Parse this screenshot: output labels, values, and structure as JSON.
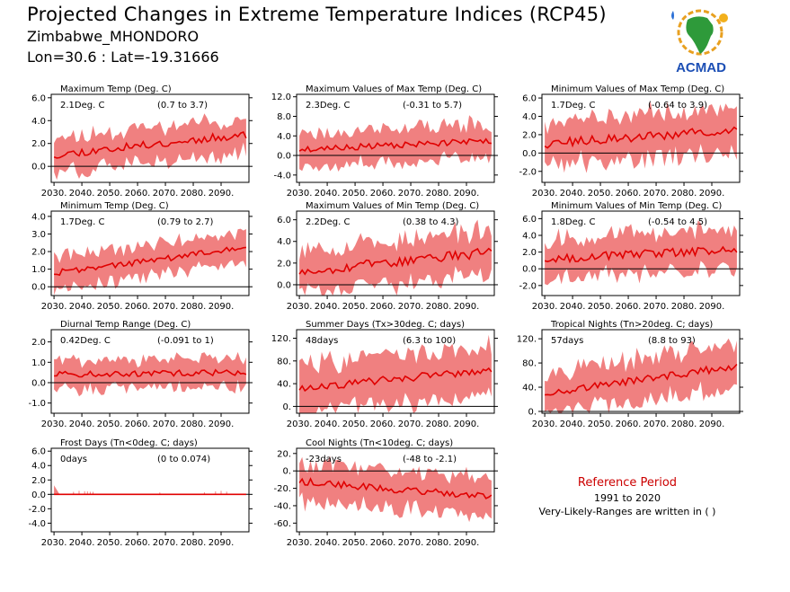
{
  "header": {
    "title": "Projected Changes in Extreme Temperature Indices (RCP45)",
    "location": "Zimbabwe_MHONDORO",
    "coords": "Lon=30.6 : Lat=-19.31666"
  },
  "logo": {
    "text": "ACMAD",
    "icon": "africa-map-logo"
  },
  "reference": {
    "title": "Reference Period",
    "years": "1991 to 2020",
    "note": "Very-Likely-Ranges are written in ( )"
  },
  "colors": {
    "band": "#f08080",
    "line": "#e00000",
    "zero": "#000000",
    "ref_title": "#cc0000"
  },
  "chart_data": [
    {
      "type": "area",
      "title": "Maximum Temp (Deg. C)",
      "mean_label": "2.1Deg. C",
      "range_label": "(0.7 to 3.7)",
      "x_ticks": [
        "2030.",
        "2040.",
        "2050.",
        "2060.",
        "2070.",
        "2080.",
        "2090."
      ],
      "x_range": [
        2029,
        2100
      ],
      "y_ticks": [
        "6.0",
        "4.0",
        "2.0",
        "0.0"
      ],
      "ylim": [
        -1.4,
        6.3
      ],
      "y_start": 1.0,
      "y_end": 2.8,
      "band": 1.5,
      "noise": 0.35,
      "seed": 11
    },
    {
      "type": "area",
      "title": "Maximum Values of Max Temp (Deg. C)",
      "mean_label": "2.3Deg. C",
      "range_label": "(-0.31 to 5.7)",
      "x_ticks": [
        "2030.",
        "2040.",
        "2050.",
        "2060.",
        "2070.",
        "2080.",
        "2090."
      ],
      "x_range": [
        2029,
        2100
      ],
      "y_ticks": [
        "12.0",
        "8.0",
        "4.0",
        "0.0",
        "-4.0"
      ],
      "ylim": [
        -5.5,
        12.5
      ],
      "y_start": 1.2,
      "y_end": 3.0,
      "band": 3.5,
      "noise": 0.6,
      "seed": 23
    },
    {
      "type": "area",
      "title": "Minimum Values of Max Temp (Deg. C)",
      "mean_label": "1.7Deg. C",
      "range_label": "(-0.64 to 3.9)",
      "x_ticks": [
        "2030.",
        "2040.",
        "2050.",
        "2060.",
        "2070.",
        "2080.",
        "2090."
      ],
      "x_range": [
        2029,
        2100
      ],
      "y_ticks": [
        "6.0",
        "4.0",
        "2.0",
        "0.0",
        "-2.0"
      ],
      "ylim": [
        -3.2,
        6.4
      ],
      "y_start": 1.0,
      "y_end": 2.5,
      "band": 2.4,
      "noise": 0.5,
      "seed": 37
    },
    {
      "type": "area",
      "title": "Minimum Temp (Deg. C)",
      "mean_label": "1.7Deg. C",
      "range_label": "(0.79 to 2.7)",
      "x_ticks": [
        "2030.",
        "2040.",
        "2050.",
        "2060.",
        "2070.",
        "2080.",
        "2090."
      ],
      "x_range": [
        2029,
        2100
      ],
      "y_ticks": [
        "4.0",
        "3.0",
        "2.0",
        "1.0",
        "0.0"
      ],
      "ylim": [
        -0.5,
        4.3
      ],
      "y_start": 0.8,
      "y_end": 2.2,
      "band": 0.9,
      "noise": 0.18,
      "seed": 41
    },
    {
      "type": "area",
      "title": "Maximum Values of Min Temp (Deg. C)",
      "mean_label": "2.2Deg. C",
      "range_label": "(0.38 to 4.3)",
      "x_ticks": [
        "2030.",
        "2040.",
        "2050.",
        "2060.",
        "2070.",
        "2080.",
        "2090."
      ],
      "x_range": [
        2029,
        2100
      ],
      "y_ticks": [
        "6.0",
        "4.0",
        "2.0",
        "0.0"
      ],
      "ylim": [
        -1.0,
        6.8
      ],
      "y_start": 1.2,
      "y_end": 3.0,
      "band": 2.0,
      "noise": 0.45,
      "seed": 53
    },
    {
      "type": "area",
      "title": "Minimum Values of Min Temp (Deg. C)",
      "mean_label": "1.8Deg. C",
      "range_label": "(-0.54 to 4.5)",
      "x_ticks": [
        "2030.",
        "2040.",
        "2050.",
        "2060.",
        "2070.",
        "2080.",
        "2090."
      ],
      "x_range": [
        2029,
        2100
      ],
      "y_ticks": [
        "6.0",
        "4.0",
        "2.0",
        "0.0",
        "-2.0"
      ],
      "ylim": [
        -3.2,
        6.9
      ],
      "y_start": 1.2,
      "y_end": 2.3,
      "band": 2.4,
      "noise": 0.5,
      "seed": 67
    },
    {
      "type": "area",
      "title": "Diurnal Temp Range (Deg. C)",
      "mean_label": "0.42Deg. C",
      "range_label": "(-0.091 to 1)",
      "x_ticks": [
        "2030.",
        "2040.",
        "2050.",
        "2060.",
        "2070.",
        "2080.",
        "2090."
      ],
      "x_range": [
        2029,
        2100
      ],
      "y_ticks": [
        "2.0",
        "1.0",
        "0.0",
        "-1.0"
      ],
      "ylim": [
        -1.5,
        2.6
      ],
      "y_start": 0.4,
      "y_end": 0.5,
      "band": 0.7,
      "noise": 0.15,
      "seed": 71
    },
    {
      "type": "area",
      "title": "Summer Days (Tx>30deg. C; days)",
      "mean_label": "48days",
      "range_label": "(6.3 to 100)",
      "x_ticks": [
        "2030.",
        "2040.",
        "2050.",
        "2060.",
        "2070.",
        "2080.",
        "2090."
      ],
      "x_range": [
        2029,
        2100
      ],
      "y_ticks": [
        "120.",
        "80.",
        "40.",
        "0."
      ],
      "ylim": [
        -12,
        135
      ],
      "y_start": 32,
      "y_end": 65,
      "band": 42,
      "noise": 7,
      "seed": 83
    },
    {
      "type": "area",
      "title": "Tropical Nights (Tn>20deg. C; days)",
      "mean_label": "57days",
      "range_label": "(8.8 to 93)",
      "x_ticks": [
        "2030.",
        "2040.",
        "2050.",
        "2060.",
        "2070.",
        "2080.",
        "2090."
      ],
      "x_range": [
        2029,
        2100
      ],
      "y_ticks": [
        "120.",
        "80.",
        "40.",
        "0."
      ],
      "ylim": [
        -3,
        135
      ],
      "y_start": 30,
      "y_end": 75,
      "band": 35,
      "noise": 6,
      "seed": 97
    },
    {
      "type": "area",
      "title": "Frost Days (Tn<0deg. C; days)",
      "mean_label": "0days",
      "range_label": "(0 to 0.074)",
      "x_ticks": [
        "2030.",
        "2040.",
        "2050.",
        "2060.",
        "2070.",
        "2080.",
        "2090."
      ],
      "x_range": [
        2029,
        2100
      ],
      "y_ticks": [
        "6.0",
        "4.0",
        "2.0",
        "0.0",
        "-2.0",
        "-4.0"
      ],
      "ylim": [
        -5.2,
        6.4
      ],
      "y_start": 0.0,
      "y_end": 0.0,
      "band": 0.05,
      "noise": 0.0,
      "seed": 101
    },
    {
      "type": "area",
      "title": "Cool Nights (Tn<10deg. C; days)",
      "mean_label": "-23days",
      "range_label": "(-48 to -2.1)",
      "x_ticks": [
        "2030.",
        "2040.",
        "2050.",
        "2060.",
        "2070.",
        "2080.",
        "2090."
      ],
      "x_range": [
        2029,
        2100
      ],
      "y_ticks": [
        "20.",
        "0.",
        "-20.",
        "-40.",
        "-60."
      ],
      "ylim": [
        -70,
        26
      ],
      "y_start": -12,
      "y_end": -30,
      "band": 22,
      "noise": 4,
      "seed": 113
    }
  ]
}
